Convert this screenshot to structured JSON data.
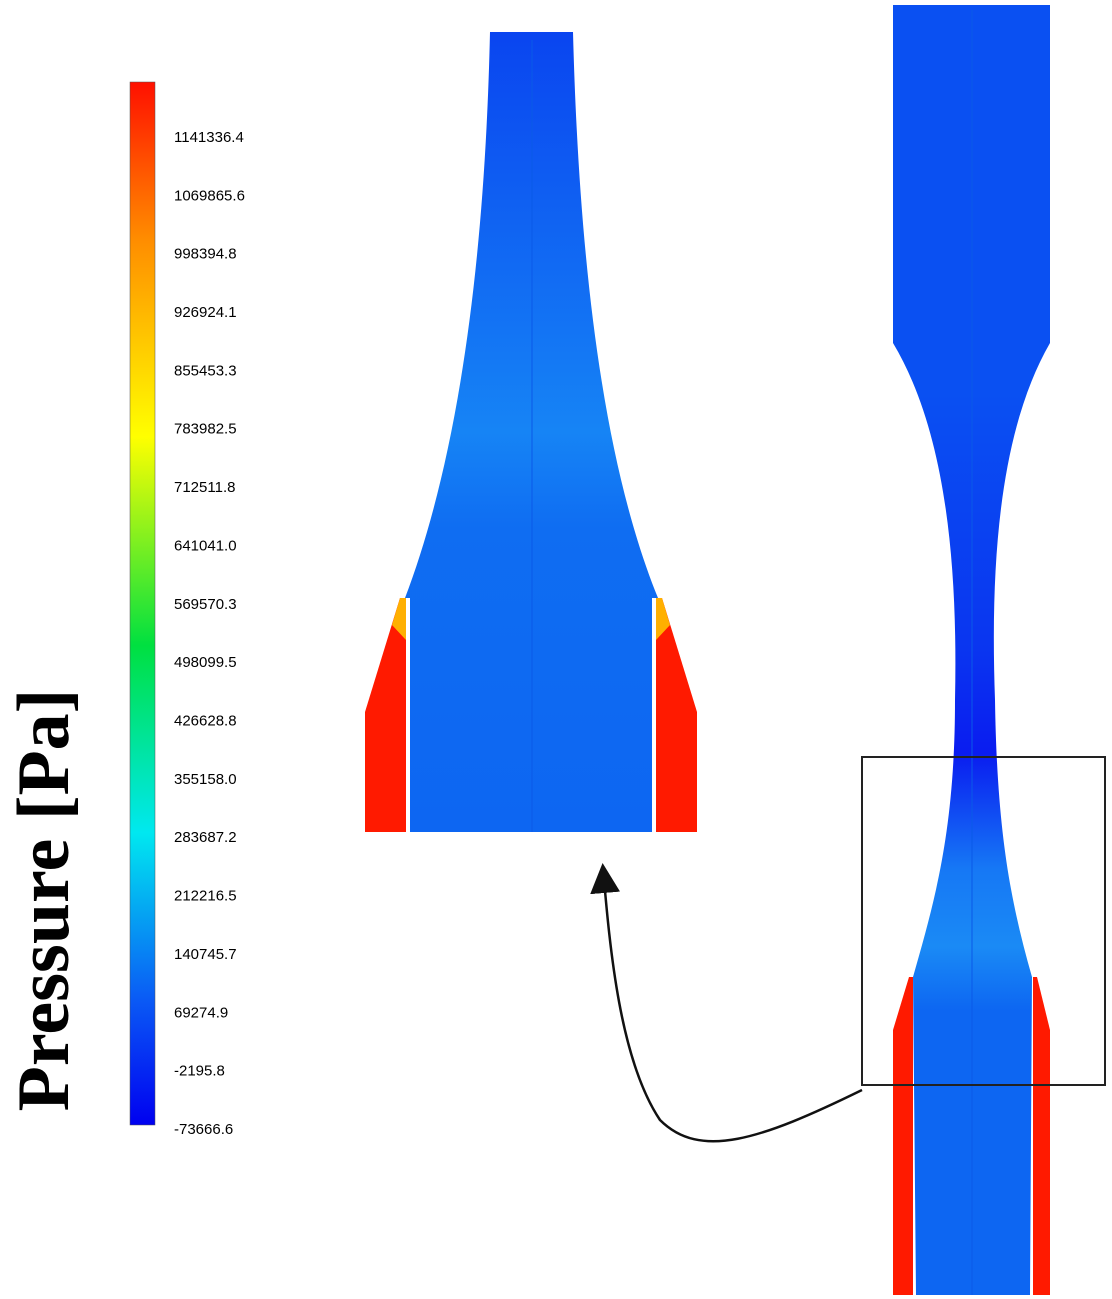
{
  "colorbar": {
    "title": "Pressure [Pa]",
    "labels": [
      "1141336.4",
      "1069865.6",
      "998394.8",
      "926924.1",
      "855453.3",
      "783982.5",
      "712511.8",
      "641041.0",
      "569570.3",
      "498099.5",
      "426628.8",
      "355158.0",
      "283687.2",
      "212216.5",
      "140745.7",
      "69274.9",
      "-2195.8",
      "-73666.6"
    ]
  }
}
